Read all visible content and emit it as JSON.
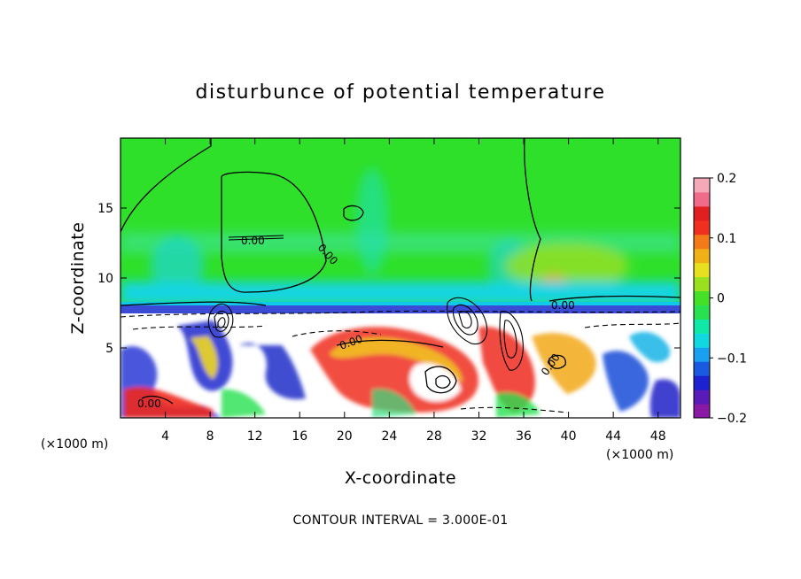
{
  "chart_data": {
    "type": "heatmap",
    "title": "disturbunce of potential temperature",
    "xlabel": "X-coordinate",
    "ylabel": "Z-coordinate",
    "x_unit": "(×1000 m)",
    "y_unit": "(×1000 m)",
    "xlim": [
      0,
      50
    ],
    "ylim": [
      0,
      20
    ],
    "x_ticks": [
      4,
      8,
      12,
      16,
      20,
      24,
      28,
      32,
      36,
      40,
      44,
      48
    ],
    "y_ticks": [
      5,
      10,
      15
    ],
    "colorbar": {
      "min": -0.2,
      "max": 0.2,
      "ticks": [
        0.2,
        0.1,
        0,
        -0.1,
        -0.2
      ],
      "tick_labels": [
        "0.2",
        "0.1",
        "0",
        "−0.1",
        "−0.2"
      ],
      "colors": [
        "#8a1aa6",
        "#5a1ab8",
        "#1c22d0",
        "#1a5ae0",
        "#1aa0f0",
        "#10d8e0",
        "#10e8a8",
        "#28e050",
        "#44e028",
        "#9ae020",
        "#e6e020",
        "#f0b018",
        "#f27a18",
        "#ef3020",
        "#e02020",
        "#f06a8a",
        "#f4a8b8"
      ]
    },
    "contour_labels": [
      "0.00",
      "0.00",
      "0.00",
      "0.00",
      "0.00",
      "0.00"
    ],
    "contour_interval_text": "CONTOUR INTERVAL = 3.000E-01"
  }
}
